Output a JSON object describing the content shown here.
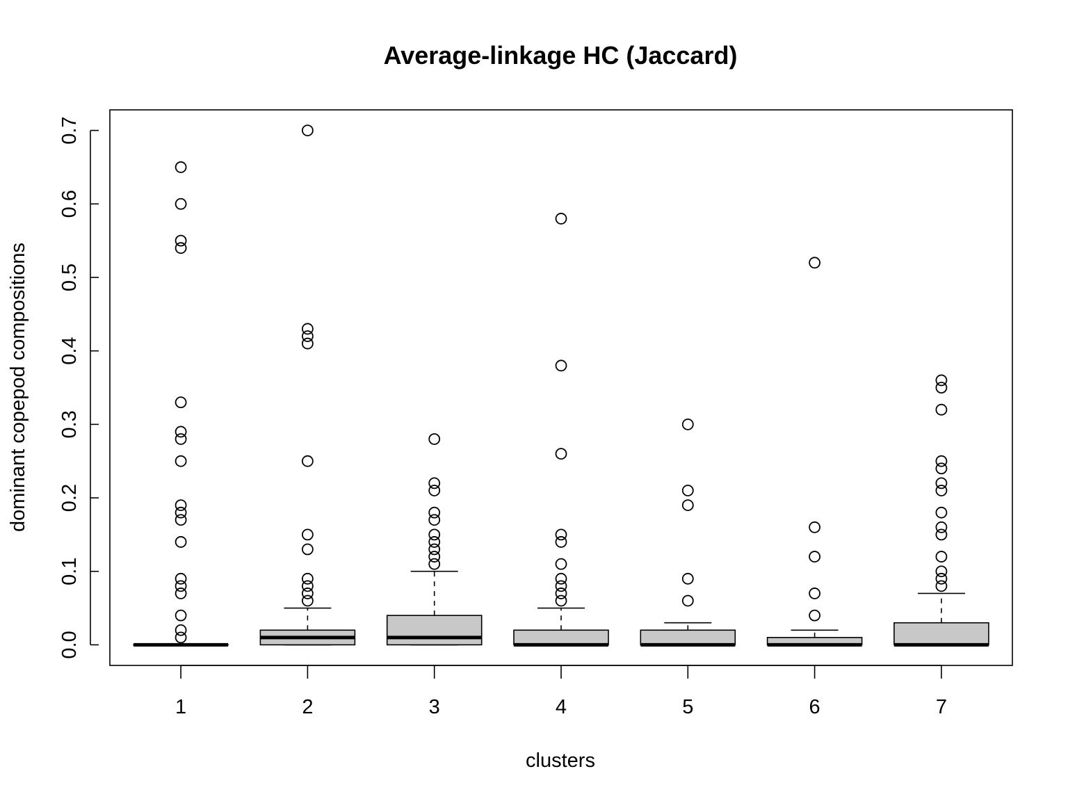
{
  "chart_data": {
    "type": "box",
    "title": "Average-linkage HC (Jaccard)",
    "xlabel": "clusters",
    "ylabel": "dominant copepod compositions",
    "ylim": [
      -0.028,
      0.728
    ],
    "yticks": [
      "0.0",
      "0.1",
      "0.2",
      "0.3",
      "0.4",
      "0.5",
      "0.6",
      "0.7"
    ],
    "categories": [
      "1",
      "2",
      "3",
      "4",
      "5",
      "6",
      "7"
    ],
    "box_fill": "#c8c8c8",
    "grid": false,
    "boxes": [
      {
        "name": "1",
        "whisker_low": 0,
        "q1": 0,
        "median": 0,
        "q3": 0,
        "whisker_high": 0,
        "outliers": [
          0.65,
          0.6,
          0.55,
          0.54,
          0.33,
          0.29,
          0.28,
          0.25,
          0.19,
          0.18,
          0.17,
          0.14,
          0.09,
          0.08,
          0.07,
          0.04,
          0.02,
          0.01
        ]
      },
      {
        "name": "2",
        "whisker_low": 0,
        "q1": 0,
        "median": 0.01,
        "q3": 0.02,
        "whisker_high": 0.05,
        "outliers": [
          0.7,
          0.43,
          0.42,
          0.41,
          0.25,
          0.15,
          0.13,
          0.09,
          0.08,
          0.07,
          0.06
        ]
      },
      {
        "name": "3",
        "whisker_low": 0,
        "q1": 0,
        "median": 0.01,
        "q3": 0.04,
        "whisker_high": 0.1,
        "outliers": [
          0.28,
          0.22,
          0.21,
          0.18,
          0.17,
          0.15,
          0.14,
          0.13,
          0.12,
          0.11
        ]
      },
      {
        "name": "4",
        "whisker_low": 0,
        "q1": 0,
        "median": 0,
        "q3": 0.02,
        "whisker_high": 0.05,
        "outliers": [
          0.58,
          0.38,
          0.26,
          0.15,
          0.14,
          0.11,
          0.09,
          0.08,
          0.07,
          0.06
        ]
      },
      {
        "name": "5",
        "whisker_low": 0,
        "q1": 0,
        "median": 0,
        "q3": 0.02,
        "whisker_high": 0.03,
        "outliers": [
          0.3,
          0.21,
          0.19,
          0.09,
          0.06
        ]
      },
      {
        "name": "6",
        "whisker_low": 0,
        "q1": 0,
        "median": 0,
        "q3": 0.01,
        "whisker_high": 0.02,
        "outliers": [
          0.52,
          0.16,
          0.12,
          0.07,
          0.04
        ]
      },
      {
        "name": "7",
        "whisker_low": 0,
        "q1": 0,
        "median": 0,
        "q3": 0.03,
        "whisker_high": 0.07,
        "outliers": [
          0.36,
          0.35,
          0.32,
          0.25,
          0.24,
          0.22,
          0.21,
          0.18,
          0.16,
          0.15,
          0.12,
          0.1,
          0.09,
          0.08
        ]
      }
    ]
  }
}
